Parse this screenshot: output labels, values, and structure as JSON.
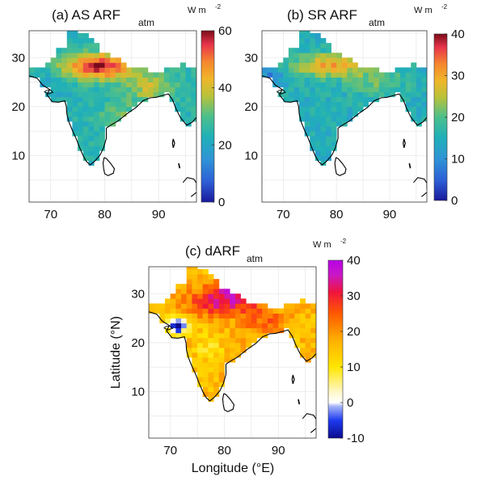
{
  "figure": {
    "x_axis_label": "Longitude (°E)",
    "y_axis_label": "Latitude (°N)"
  },
  "chart_data": [
    {
      "type": "heatmap",
      "panel": "a",
      "title_main": "(a) AS ARF",
      "title_subscript": "atm",
      "units_main": "W m",
      "units_exponent": "-2",
      "xlim": [
        66,
        97
      ],
      "ylim": [
        0.5,
        35.5
      ],
      "x_ticks": [
        70,
        80,
        90
      ],
      "y_ticks": [
        10,
        20,
        30
      ],
      "x_tick_labels": [
        "70",
        "80",
        "90"
      ],
      "y_tick_labels": [
        "10",
        "20",
        "30"
      ],
      "grid": true,
      "colorbar": {
        "min": 0,
        "max": 60,
        "ticks": [
          0,
          20,
          40,
          60
        ],
        "tick_labels": [
          "0",
          "20",
          "40",
          "60"
        ],
        "colormap": "parula-to-red"
      },
      "value_field": "elevated (45–60) along the Indo-Gangetic Plain in the north, peaking near 28°N 75–85°E; moderate (30–40) over eastern India; lower (15–30) over central and southern peninsula"
    },
    {
      "type": "heatmap",
      "panel": "b",
      "title_main": "(b) SR ARF",
      "title_subscript": "atm",
      "units_main": "W m",
      "units_exponent": "-2",
      "xlim": [
        66,
        97
      ],
      "ylim": [
        0.5,
        35.5
      ],
      "x_ticks": [
        70,
        80,
        90
      ],
      "y_ticks": [
        10,
        20,
        30
      ],
      "x_tick_labels": [
        "70",
        "80",
        "90"
      ],
      "y_tick_labels": [
        "10",
        "20",
        "30"
      ],
      "grid": true,
      "colorbar": {
        "min": 0,
        "max": 40,
        "ticks": [
          0,
          10,
          20,
          30,
          40
        ],
        "tick_labels": [
          "0",
          "10",
          "20",
          "30",
          "40"
        ],
        "colormap": "parula-to-red"
      },
      "value_field": "moderate (20–32) along the northern plains; low (10–20) over most of central and southern India; very low (5–10) in the far west"
    },
    {
      "type": "heatmap",
      "panel": "c",
      "title_main": "(c) dARF",
      "title_subscript": "atm",
      "units_main": "W m",
      "units_exponent": "-2",
      "xlim": [
        66,
        97
      ],
      "ylim": [
        0.5,
        35.5
      ],
      "x_ticks": [
        70,
        80,
        90
      ],
      "y_ticks": [
        10,
        20,
        30
      ],
      "x_tick_labels": [
        "70",
        "80",
        "90"
      ],
      "y_tick_labels": [
        "10",
        "20",
        "30"
      ],
      "grid": true,
      "colorbar": {
        "min": -10,
        "max": 40,
        "ticks": [
          -10,
          0,
          10,
          20,
          30,
          40
        ],
        "tick_labels": [
          "-10",
          "0",
          "10",
          "20",
          "30",
          "40"
        ],
        "colormap": "blue-white-yellow-red-magenta"
      },
      "value_field": "difference (a − b): 25–40 over the northern plains with magenta spots near 30°N 80°E; 10–20 over central and southern India; near 0 to negative (blue) near 22–24°N 70–74°E in the west"
    }
  ]
}
